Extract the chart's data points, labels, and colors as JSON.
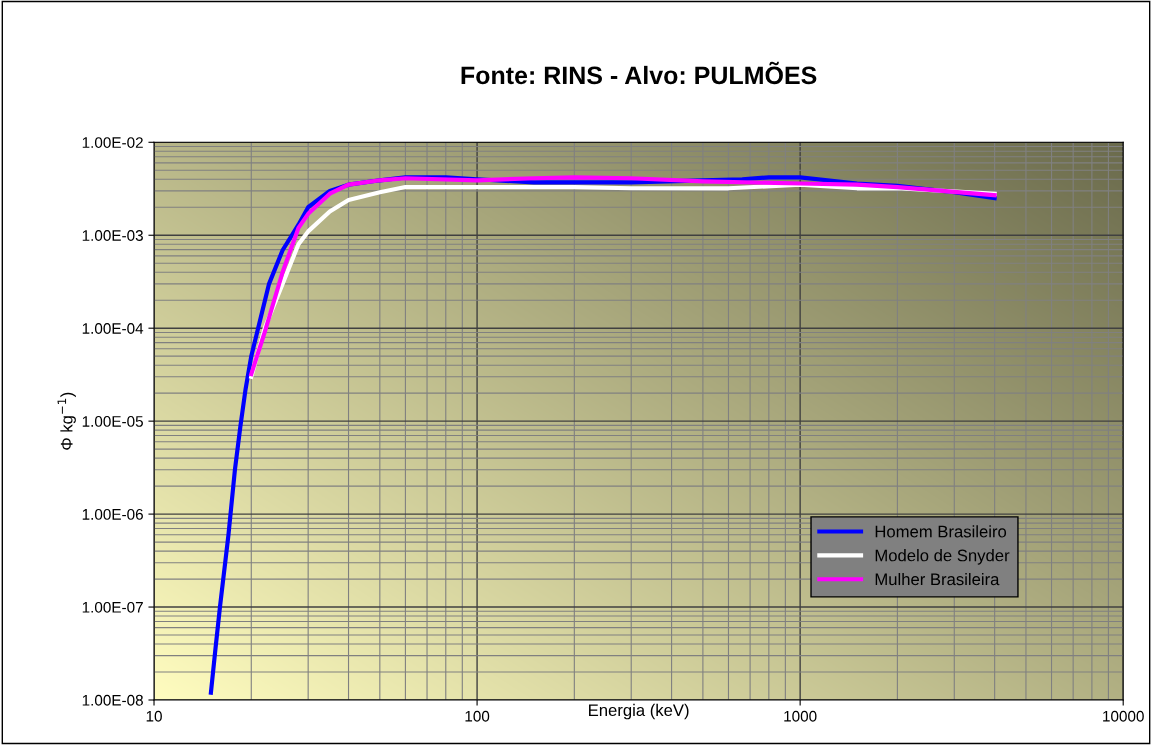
{
  "chart_data": {
    "type": "line",
    "title": "Fonte: RINS - Alvo: PULMÕES",
    "xlabel": "Energia (keV)",
    "ylabel": "Φ kg$^{−1}$)",
    "log": "xy",
    "grid": true,
    "legend": "bottom right",
    "marker": "none",
    "line_style": "solid",
    "xlim": [
      10,
      10000
    ],
    "xticks": [
      10,
      100,
      1000,
      10000
    ],
    "ylim": [
      1e-08,
      0.01
    ],
    "yticks": [
      {
        "value": 1e-08,
        "label": "1.00E-08"
      },
      {
        "value": 1e-07,
        "label": "1.00E-07"
      },
      {
        "value": 1e-06,
        "label": "1.00E-06"
      },
      {
        "value": 1e-05,
        "label": "1.00E-05"
      },
      {
        "value": 0.0001,
        "label": "1.00E-04"
      },
      {
        "value": 0.001,
        "label": "1.00E-03"
      },
      {
        "value": 0.01,
        "label": "1.00E-02"
      }
    ],
    "series": [
      {
        "name": "Homem Brasileiro",
        "color": "#0000ff",
        "x": [
          15,
          15.5,
          16,
          17,
          17.8,
          18.5,
          19.2,
          20,
          22.7,
          25,
          28,
          30,
          35,
          40,
          50,
          60,
          80,
          100,
          150,
          200,
          300,
          500,
          662,
          800,
          1000,
          1500,
          2000,
          3000,
          4000
        ],
        "values": [
          1.2e-08,
          3.6e-08,
          1e-07,
          6e-07,
          3e-06,
          8.7e-06,
          2.2e-05,
          5e-05,
          0.0003,
          0.00069,
          0.0013,
          0.002,
          0.003,
          0.0035,
          0.0039,
          0.0042,
          0.0042,
          0.004,
          0.0037,
          0.0037,
          0.0037,
          0.0039,
          0.004,
          0.0042,
          0.0042,
          0.0036,
          0.0034,
          0.0029,
          0.0025
        ]
      },
      {
        "name": "Modelo de Snyder",
        "color": "#ffffff",
        "x": [
          20,
          22,
          25,
          28,
          30,
          35,
          40,
          50,
          60,
          80,
          100,
          200,
          300,
          600,
          1000,
          1500,
          2000,
          4000
        ],
        "values": [
          3e-05,
          0.0001,
          0.0003,
          0.0008,
          0.0011,
          0.0018,
          0.0024,
          0.0029,
          0.0033,
          0.0033,
          0.0033,
          0.0033,
          0.0032,
          0.0032,
          0.0035,
          0.0032,
          0.0032,
          0.0028
        ]
      },
      {
        "name": "Mulher Brasileira",
        "color": "#ff00ff",
        "x": [
          20,
          22,
          25,
          28,
          30,
          35,
          40,
          50,
          60,
          100,
          150,
          200,
          300,
          500,
          1000,
          1500,
          2000,
          4000
        ],
        "values": [
          3.2e-05,
          9e-05,
          0.0004,
          0.0012,
          0.0017,
          0.0028,
          0.0035,
          0.0039,
          0.0041,
          0.0039,
          0.0041,
          0.0042,
          0.0041,
          0.0038,
          0.0036,
          0.0035,
          0.0033,
          0.0027
        ]
      }
    ]
  }
}
